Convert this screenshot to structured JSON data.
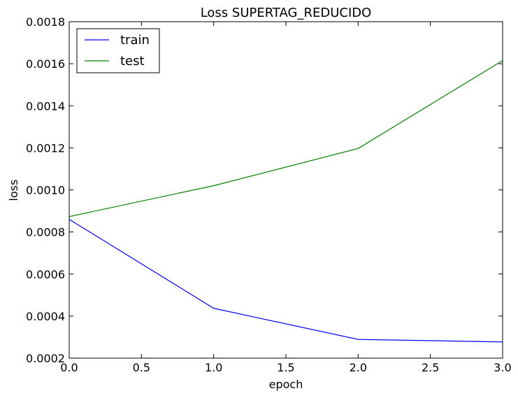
{
  "chart_data": {
    "type": "line",
    "title": "Loss SUPERTAG_REDUCIDO",
    "xlabel": "epoch",
    "ylabel": "loss",
    "xlim": [
      0.0,
      3.0
    ],
    "ylim": [
      0.0002,
      0.0018
    ],
    "x_ticks": [
      "0.0",
      "0.5",
      "1.0",
      "1.5",
      "2.0",
      "2.5",
      "3.0"
    ],
    "y_ticks": [
      "0.0002",
      "0.0004",
      "0.0006",
      "0.0008",
      "0.0010",
      "0.0012",
      "0.0014",
      "0.0016",
      "0.0018"
    ],
    "x": [
      0,
      1,
      2,
      3
    ],
    "series": [
      {
        "name": "train",
        "color": "#0000ff",
        "values": [
          0.00086,
          0.000437,
          0.000289,
          0.000277
        ]
      },
      {
        "name": "test",
        "color": "#008000",
        "values": [
          0.000873,
          0.00102,
          0.001197,
          0.001615
        ]
      }
    ],
    "grid": false,
    "legend_position": "top-left"
  }
}
